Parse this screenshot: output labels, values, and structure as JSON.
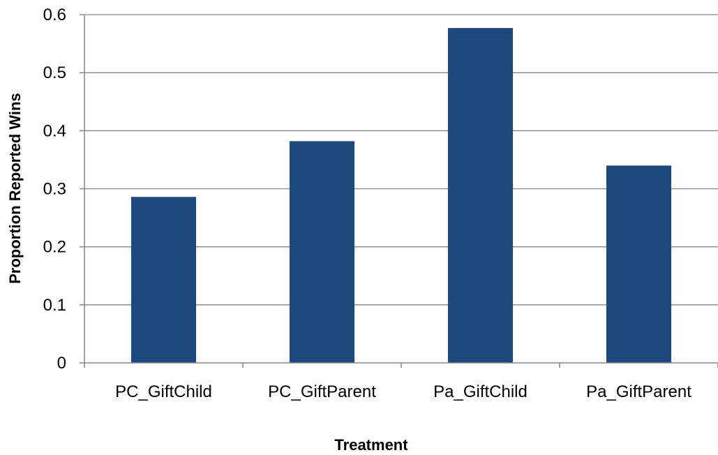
{
  "chart_data": {
    "type": "bar",
    "title": "",
    "xlabel": "Treatment",
    "ylabel": "Proportion Reported Wins",
    "categories": [
      "PC_GiftChild",
      "PC_GiftParent",
      "Pa_GiftChild",
      "Pa_GiftParent"
    ],
    "values": [
      0.286,
      0.382,
      0.577,
      0.34
    ],
    "ylim": [
      0,
      0.6
    ],
    "yticks": [
      "0",
      "0.1",
      "0.2",
      "0.3",
      "0.4",
      "0.5",
      "0.6"
    ],
    "grid": true,
    "legend": "none",
    "colors": {
      "bar": "#1F497D",
      "gridline": "#868686"
    }
  }
}
